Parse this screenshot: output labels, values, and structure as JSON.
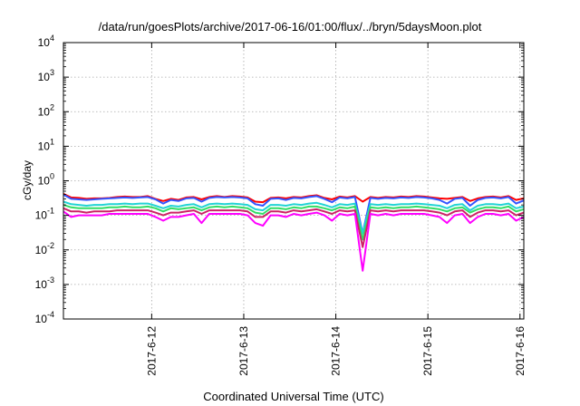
{
  "chart_data": {
    "type": "line",
    "title": "/data/run/goesPlots/archive/2017-06-16/01:00/flux/../bryn/5daysMoon.plot",
    "xlabel": "Coordinated Universal Time (UTC)",
    "ylabel": "cGy/day",
    "yscale": "log",
    "ylim": [
      0.0001,
      10000
    ],
    "xlim": [
      "2017-06-11 01:00",
      "2017-06-16 01:00"
    ],
    "y_ticks": [
      {
        "value": 0.0001,
        "base": "10",
        "exp": "-4"
      },
      {
        "value": 0.001,
        "base": "10",
        "exp": "-3"
      },
      {
        "value": 0.01,
        "base": "10",
        "exp": "-2"
      },
      {
        "value": 0.1,
        "base": "10",
        "exp": "-1"
      },
      {
        "value": 1,
        "base": "10",
        "exp": "0"
      },
      {
        "value": 10,
        "base": "10",
        "exp": "1"
      },
      {
        "value": 100,
        "base": "10",
        "exp": "2"
      },
      {
        "value": 1000,
        "base": "10",
        "exp": "3"
      },
      {
        "value": 10000,
        "base": "10",
        "exp": "4"
      }
    ],
    "x_ticks": [
      "2017-6-12",
      "2017-6-13",
      "2017-6-14",
      "2017-6-15",
      "2017-6-16"
    ],
    "x_tick_times": [
      "2017-06-12 00:00",
      "2017-06-13 00:00",
      "2017-06-14 00:00",
      "2017-06-15 00:00",
      "2017-06-16 00:00"
    ],
    "grid": true,
    "legend": "none",
    "x": [
      "2017-06-11 01:00",
      "2017-06-11 03:00",
      "2017-06-11 05:00",
      "2017-06-11 07:00",
      "2017-06-11 09:00",
      "2017-06-11 11:00",
      "2017-06-11 13:00",
      "2017-06-11 15:00",
      "2017-06-11 17:00",
      "2017-06-11 19:00",
      "2017-06-11 21:00",
      "2017-06-11 23:00",
      "2017-06-12 01:00",
      "2017-06-12 03:00",
      "2017-06-12 05:00",
      "2017-06-12 07:00",
      "2017-06-12 09:00",
      "2017-06-12 11:00",
      "2017-06-12 13:00",
      "2017-06-12 15:00",
      "2017-06-12 17:00",
      "2017-06-12 19:00",
      "2017-06-12 21:00",
      "2017-06-12 23:00",
      "2017-06-13 01:00",
      "2017-06-13 03:00",
      "2017-06-13 05:00",
      "2017-06-13 07:00",
      "2017-06-13 09:00",
      "2017-06-13 11:00",
      "2017-06-13 13:00",
      "2017-06-13 15:00",
      "2017-06-13 17:00",
      "2017-06-13 19:00",
      "2017-06-13 21:00",
      "2017-06-13 23:00",
      "2017-06-14 01:00",
      "2017-06-14 03:00",
      "2017-06-14 05:00",
      "2017-06-14 07:00",
      "2017-06-14 09:00",
      "2017-06-14 11:00",
      "2017-06-14 13:00",
      "2017-06-14 15:00",
      "2017-06-14 17:00",
      "2017-06-14 19:00",
      "2017-06-14 21:00",
      "2017-06-14 23:00",
      "2017-06-15 01:00",
      "2017-06-15 03:00",
      "2017-06-15 05:00",
      "2017-06-15 07:00",
      "2017-06-15 09:00",
      "2017-06-15 11:00",
      "2017-06-15 13:00",
      "2017-06-15 15:00",
      "2017-06-15 17:00",
      "2017-06-15 19:00",
      "2017-06-15 21:00",
      "2017-06-15 23:00",
      "2017-06-16 01:00"
    ],
    "series": [
      {
        "color": "#ff0000",
        "values": [
          0.42,
          0.33,
          0.32,
          0.3,
          0.31,
          0.31,
          0.32,
          0.34,
          0.35,
          0.34,
          0.34,
          0.36,
          0.3,
          0.26,
          0.3,
          0.28,
          0.33,
          0.34,
          0.29,
          0.34,
          0.36,
          0.34,
          0.36,
          0.35,
          0.33,
          0.25,
          0.24,
          0.32,
          0.33,
          0.31,
          0.34,
          0.33,
          0.36,
          0.38,
          0.32,
          0.29,
          0.35,
          0.33,
          0.36,
          0.25,
          0.34,
          0.32,
          0.34,
          0.33,
          0.35,
          0.34,
          0.36,
          0.35,
          0.33,
          0.31,
          0.3,
          0.32,
          0.34,
          0.26,
          0.31,
          0.34,
          0.35,
          0.33,
          0.36,
          0.28,
          0.31
        ]
      },
      {
        "color": "#3355ff",
        "values": [
          0.4,
          0.3,
          0.29,
          0.28,
          0.29,
          0.3,
          0.31,
          0.32,
          0.33,
          0.32,
          0.33,
          0.34,
          0.29,
          0.22,
          0.28,
          0.26,
          0.31,
          0.32,
          0.25,
          0.32,
          0.34,
          0.33,
          0.34,
          0.33,
          0.31,
          0.21,
          0.19,
          0.3,
          0.31,
          0.28,
          0.32,
          0.31,
          0.34,
          0.36,
          0.3,
          0.24,
          0.33,
          0.31,
          0.34,
          0.03,
          0.32,
          0.3,
          0.32,
          0.31,
          0.33,
          0.32,
          0.34,
          0.33,
          0.31,
          0.28,
          0.22,
          0.3,
          0.32,
          0.19,
          0.28,
          0.32,
          0.33,
          0.31,
          0.34,
          0.22,
          0.27
        ]
      },
      {
        "color": "#22d4d4",
        "values": [
          0.25,
          0.21,
          0.2,
          0.19,
          0.2,
          0.2,
          0.21,
          0.21,
          0.22,
          0.21,
          0.22,
          0.22,
          0.19,
          0.16,
          0.19,
          0.18,
          0.2,
          0.21,
          0.17,
          0.21,
          0.22,
          0.21,
          0.22,
          0.21,
          0.2,
          0.15,
          0.14,
          0.2,
          0.2,
          0.19,
          0.21,
          0.2,
          0.22,
          0.23,
          0.2,
          0.17,
          0.21,
          0.2,
          0.22,
          0.03,
          0.21,
          0.2,
          0.21,
          0.2,
          0.21,
          0.21,
          0.22,
          0.21,
          0.2,
          0.19,
          0.16,
          0.2,
          0.21,
          0.14,
          0.19,
          0.21,
          0.21,
          0.2,
          0.22,
          0.16,
          0.18
        ]
      },
      {
        "color": "#33dd66",
        "values": [
          0.2,
          0.17,
          0.16,
          0.16,
          0.16,
          0.16,
          0.17,
          0.17,
          0.18,
          0.17,
          0.17,
          0.18,
          0.16,
          0.13,
          0.16,
          0.15,
          0.16,
          0.17,
          0.14,
          0.17,
          0.18,
          0.17,
          0.18,
          0.17,
          0.16,
          0.12,
          0.11,
          0.16,
          0.16,
          0.15,
          0.17,
          0.16,
          0.18,
          0.18,
          0.16,
          0.14,
          0.17,
          0.16,
          0.18,
          0.02,
          0.17,
          0.16,
          0.17,
          0.16,
          0.17,
          0.17,
          0.18,
          0.17,
          0.16,
          0.15,
          0.13,
          0.16,
          0.17,
          0.12,
          0.15,
          0.17,
          0.17,
          0.16,
          0.18,
          0.13,
          0.15
        ]
      },
      {
        "color": "#cc2266",
        "values": [
          0.16,
          0.13,
          0.13,
          0.12,
          0.13,
          0.13,
          0.13,
          0.14,
          0.14,
          0.14,
          0.14,
          0.14,
          0.12,
          0.1,
          0.12,
          0.12,
          0.13,
          0.14,
          0.11,
          0.14,
          0.14,
          0.14,
          0.14,
          0.14,
          0.13,
          0.09,
          0.09,
          0.13,
          0.13,
          0.12,
          0.14,
          0.13,
          0.14,
          0.15,
          0.13,
          0.11,
          0.14,
          0.13,
          0.14,
          0.012,
          0.14,
          0.13,
          0.14,
          0.13,
          0.14,
          0.14,
          0.14,
          0.14,
          0.13,
          0.12,
          0.1,
          0.13,
          0.14,
          0.09,
          0.12,
          0.14,
          0.14,
          0.13,
          0.14,
          0.1,
          0.12
        ]
      },
      {
        "color": "#ff00ff",
        "values": [
          0.13,
          0.09,
          0.1,
          0.1,
          0.1,
          0.1,
          0.11,
          0.11,
          0.11,
          0.11,
          0.11,
          0.11,
          0.09,
          0.07,
          0.09,
          0.09,
          0.1,
          0.11,
          0.06,
          0.11,
          0.11,
          0.11,
          0.11,
          0.11,
          0.1,
          0.06,
          0.05,
          0.1,
          0.1,
          0.09,
          0.11,
          0.1,
          0.11,
          0.12,
          0.1,
          0.07,
          0.11,
          0.1,
          0.11,
          0.0025,
          0.11,
          0.1,
          0.11,
          0.1,
          0.11,
          0.11,
          0.11,
          0.11,
          0.1,
          0.09,
          0.06,
          0.1,
          0.11,
          0.06,
          0.09,
          0.11,
          0.11,
          0.1,
          0.11,
          0.07,
          0.09
        ]
      }
    ]
  }
}
